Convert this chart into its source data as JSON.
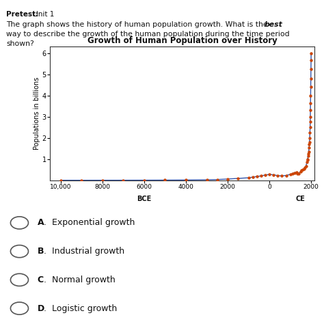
{
  "title": "Growth of Human Population over History",
  "ylabel": "Populations in billions",
  "bg_color_top": "#f0f0d0",
  "bg_color_bottom": "#ffffff",
  "chart_bg": "#ffffff",
  "dot_color": "#cc4400",
  "line_color": "#3355aa",
  "ylim": [
    0,
    6.3
  ],
  "yticks": [
    1,
    2,
    3,
    4,
    5,
    6
  ],
  "xtick_positions": [
    -10000,
    -8000,
    -6000,
    -4000,
    -2000,
    0,
    2000
  ],
  "xtick_labels": [
    "10,000",
    "8000",
    "6000",
    "4000",
    "2000",
    "0",
    "2000"
  ],
  "pop_data": [
    [
      -10000,
      0.003
    ],
    [
      -9000,
      0.003
    ],
    [
      -8000,
      0.004
    ],
    [
      -7000,
      0.005
    ],
    [
      -6000,
      0.007
    ],
    [
      -5000,
      0.01
    ],
    [
      -4000,
      0.015
    ],
    [
      -3000,
      0.025
    ],
    [
      -2500,
      0.035
    ],
    [
      -2000,
      0.06
    ],
    [
      -1500,
      0.09
    ],
    [
      -1000,
      0.12
    ],
    [
      -800,
      0.15
    ],
    [
      -600,
      0.18
    ],
    [
      -400,
      0.21
    ],
    [
      -200,
      0.25
    ],
    [
      0,
      0.28
    ],
    [
      200,
      0.26
    ],
    [
      400,
      0.22
    ],
    [
      600,
      0.21
    ],
    [
      800,
      0.23
    ],
    [
      1000,
      0.28
    ],
    [
      1100,
      0.32
    ],
    [
      1200,
      0.36
    ],
    [
      1300,
      0.38
    ],
    [
      1350,
      0.3
    ],
    [
      1400,
      0.33
    ],
    [
      1500,
      0.42
    ],
    [
      1550,
      0.46
    ],
    [
      1600,
      0.51
    ],
    [
      1650,
      0.54
    ],
    [
      1700,
      0.6
    ],
    [
      1750,
      0.68
    ],
    [
      1800,
      0.85
    ],
    [
      1820,
      0.95
    ],
    [
      1830,
      1.0
    ],
    [
      1850,
      1.15
    ],
    [
      1870,
      1.25
    ],
    [
      1880,
      1.35
    ],
    [
      1900,
      1.55
    ],
    [
      1910,
      1.7
    ],
    [
      1920,
      1.8
    ],
    [
      1930,
      2.0
    ],
    [
      1940,
      2.25
    ],
    [
      1950,
      2.5
    ],
    [
      1955,
      2.75
    ],
    [
      1960,
      3.0
    ],
    [
      1965,
      3.3
    ],
    [
      1970,
      3.65
    ],
    [
      1975,
      4.0
    ],
    [
      1980,
      4.4
    ],
    [
      1985,
      4.8
    ],
    [
      1990,
      5.25
    ],
    [
      1995,
      5.65
    ],
    [
      1999,
      6.0
    ]
  ],
  "choices": [
    "A.  Exponential growth",
    "B.  Industrial growth",
    "C.  Normal growth",
    "D.  Logistic growth"
  ],
  "pretest_bold": "Pretest:",
  "pretest_rest": " Unit 1",
  "question_line1": "The graph shows the history of human population growth. What is the ",
  "question_italic": "best",
  "question_line2": "way to describe the growth of the human population during the time period",
  "question_line3": "shown?"
}
